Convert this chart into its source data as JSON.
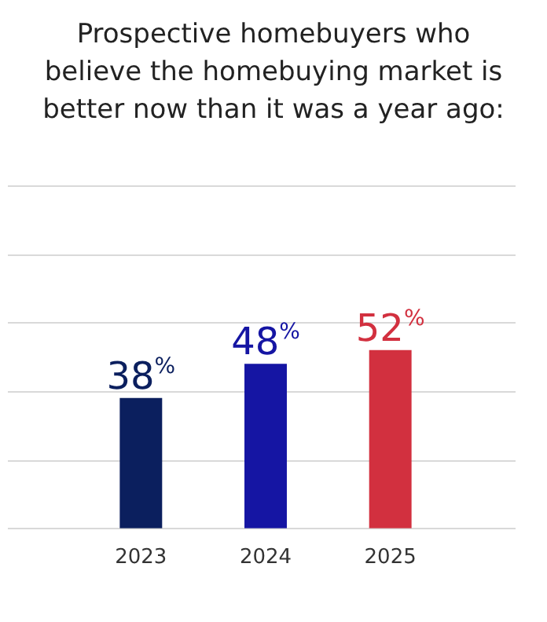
{
  "chart_data": {
    "type": "bar",
    "title": "Prospective homebuyers who believe the homebuying market is better now than it was a year ago:",
    "categories": [
      "2023",
      "2024",
      "2025"
    ],
    "values": [
      38,
      48,
      52
    ],
    "colors": [
      "#0b1f5e",
      "#1515a3",
      "#d2303f"
    ],
    "value_labels": [
      "38%",
      "48%",
      "52%"
    ],
    "ylim": [
      0,
      100
    ],
    "yticks": [
      {
        "value": 0,
        "label": null
      },
      {
        "value": 20,
        "label": null
      },
      {
        "value": 40,
        "label": null
      },
      {
        "value": 60,
        "label": null
      },
      {
        "value": 80,
        "label": null
      },
      {
        "value": 100,
        "label": null
      }
    ],
    "grid": "y",
    "tick_labels": "x",
    "legend": false
  }
}
